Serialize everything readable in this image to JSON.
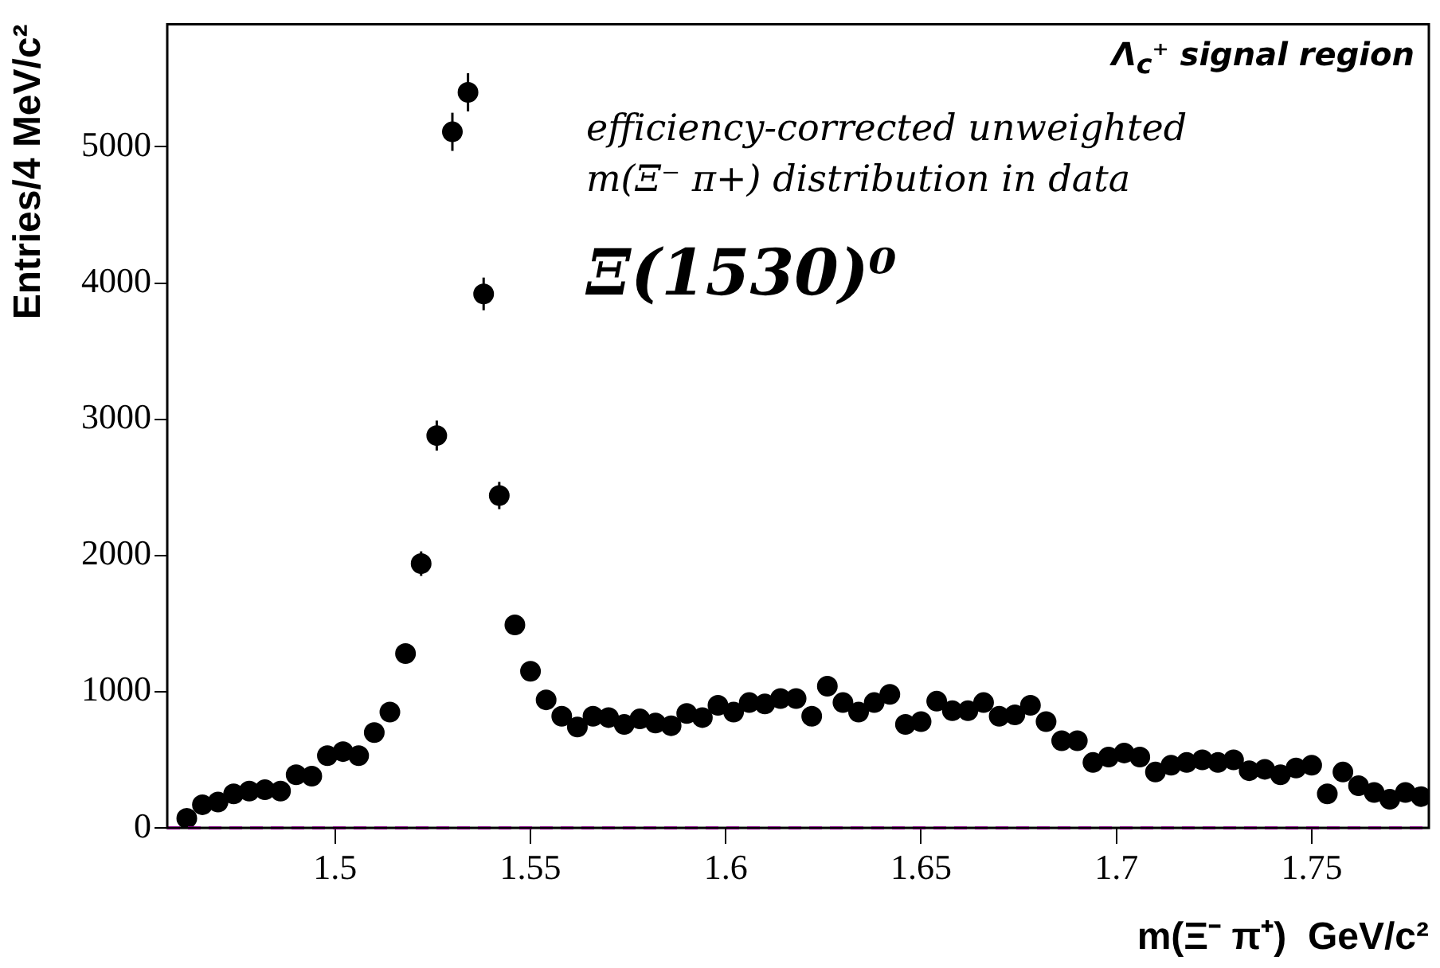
{
  "chart_data": {
    "type": "scatter",
    "xlabel": "m(Ξ⁻ π⁺)  GeV/c²",
    "ylabel": "Entries/4 MeV/c²",
    "annotations": [
      "Λ$_{c}$⁺ signal region",
      "efficiency-corrected unweighted",
      "m(Ξ⁻ π+) distribution in data",
      "Ξ(1530)⁰"
    ],
    "xlim": [
      1.457,
      1.78
    ],
    "xticks": [
      1.5,
      1.55,
      1.6,
      1.65,
      1.7,
      1.75
    ],
    "ylim": [
      0,
      5900
    ],
    "yticks": [
      0,
      1000,
      2000,
      3000,
      4000,
      5000
    ],
    "grid": false,
    "legend": false,
    "marker": "circle",
    "ref_lines": [
      {
        "axis": "y",
        "value": 0,
        "color": "#ff00ff",
        "line_style": "dashed"
      }
    ],
    "series": [
      {
        "color": "#000000",
        "x": [
          1.462,
          1.466,
          1.47,
          1.474,
          1.478,
          1.482,
          1.486,
          1.49,
          1.494,
          1.498,
          1.502,
          1.506,
          1.51,
          1.514,
          1.518,
          1.522,
          1.526,
          1.53,
          1.534,
          1.538,
          1.542,
          1.546,
          1.55,
          1.554,
          1.558,
          1.562,
          1.566,
          1.57,
          1.574,
          1.578,
          1.582,
          1.586,
          1.59,
          1.594,
          1.598,
          1.602,
          1.606,
          1.61,
          1.614,
          1.618,
          1.622,
          1.626,
          1.63,
          1.634,
          1.638,
          1.642,
          1.646,
          1.65,
          1.654,
          1.658,
          1.662,
          1.666,
          1.67,
          1.674,
          1.678,
          1.682,
          1.686,
          1.69,
          1.694,
          1.698,
          1.702,
          1.706,
          1.71,
          1.714,
          1.718,
          1.722,
          1.726,
          1.73,
          1.734,
          1.738,
          1.742,
          1.746,
          1.75,
          1.754,
          1.758,
          1.762,
          1.766,
          1.77,
          1.774,
          1.778
        ],
        "values": [
          70,
          170,
          190,
          250,
          270,
          280,
          270,
          390,
          380,
          530,
          560,
          530,
          700,
          850,
          1280,
          1940,
          2880,
          5110,
          5400,
          3920,
          2440,
          1490,
          1150,
          940,
          820,
          740,
          820,
          810,
          760,
          800,
          770,
          750,
          840,
          810,
          900,
          850,
          920,
          910,
          950,
          950,
          820,
          1040,
          920,
          850,
          920,
          980,
          760,
          780,
          930,
          860,
          860,
          920,
          820,
          830,
          900,
          780,
          640,
          640,
          480,
          520,
          550,
          520,
          410,
          460,
          480,
          500,
          480,
          500,
          420,
          430,
          390,
          440,
          460,
          250,
          410,
          310,
          260,
          210,
          260,
          230
        ],
        "errors": [
          null,
          null,
          null,
          null,
          null,
          null,
          null,
          null,
          null,
          null,
          null,
          null,
          null,
          null,
          null,
          90,
          110,
          140,
          140,
          120,
          100,
          null,
          null,
          null,
          null,
          null,
          null,
          null,
          null,
          null,
          null,
          null,
          null,
          null,
          null,
          null,
          null,
          null,
          null,
          null,
          null,
          null,
          null,
          null,
          null,
          null,
          null,
          null,
          null,
          null,
          null,
          null,
          null,
          null,
          null,
          null,
          null,
          null,
          null,
          null,
          null,
          null,
          null,
          null,
          null,
          null,
          null,
          null,
          null,
          null,
          null,
          null,
          null,
          null,
          null,
          null,
          null,
          null,
          null,
          null
        ]
      }
    ]
  }
}
